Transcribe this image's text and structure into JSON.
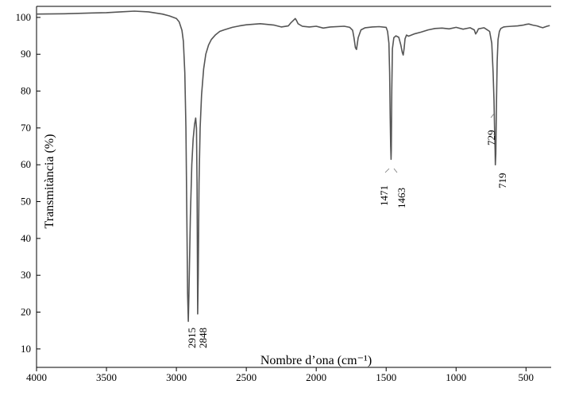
{
  "chart_data": {
    "type": "line",
    "title": "",
    "xlabel": "Nombre d’ona (cm⁻¹)",
    "ylabel": "Transmitància (%)",
    "xlim": [
      4000,
      320
    ],
    "ylim": [
      5,
      103
    ],
    "xticks": [
      4000,
      3500,
      3000,
      2500,
      2000,
      1500,
      1000,
      500
    ],
    "yticks": [
      10,
      20,
      30,
      40,
      50,
      60,
      70,
      80,
      90,
      100
    ],
    "grid": false,
    "line_color": "#555555",
    "series": [
      {
        "x": [
          4000,
          3800,
          3600,
          3500,
          3400,
          3300,
          3200,
          3100,
          3050,
          3000,
          2980,
          2960,
          2950,
          2940,
          2932,
          2925,
          2920,
          2915,
          2910,
          2900,
          2890,
          2880,
          2870,
          2862,
          2856,
          2852,
          2848,
          2844,
          2838,
          2830,
          2820,
          2805,
          2790,
          2770,
          2750,
          2720,
          2690,
          2660,
          2600,
          2550,
          2500,
          2400,
          2300,
          2250,
          2200,
          2180,
          2160,
          2150,
          2140,
          2130,
          2100,
          2050,
          2000,
          1950,
          1900,
          1800,
          1760,
          1740,
          1730,
          1720,
          1712,
          1700,
          1680,
          1650,
          1600,
          1550,
          1500,
          1490,
          1480,
          1475,
          1471,
          1468,
          1465,
          1463,
          1460,
          1455,
          1445,
          1430,
          1410,
          1395,
          1385,
          1378,
          1372,
          1365,
          1355,
          1340,
          1300,
          1250,
          1200,
          1150,
          1100,
          1050,
          1000,
          950,
          900,
          870,
          860,
          850,
          840,
          800,
          780,
          760,
          745,
          735,
          729,
          725,
          721,
          719,
          716,
          712,
          706,
          700,
          690,
          680,
          660,
          640,
          600,
          560,
          520,
          500,
          480,
          450,
          420,
          400,
          380,
          350,
          330
        ],
        "y": [
          100.9,
          101.0,
          101.2,
          101.3,
          101.5,
          101.7,
          101.5,
          100.9,
          100.4,
          99.7,
          98.8,
          96.5,
          93.5,
          85.0,
          70.0,
          45.0,
          25.0,
          17.5,
          25.0,
          46.0,
          60.0,
          67.0,
          71.0,
          72.7,
          70.0,
          55.0,
          19.5,
          30.0,
          55.0,
          70.0,
          79.0,
          86.0,
          90.0,
          92.5,
          94.0,
          95.3,
          96.2,
          96.6,
          97.3,
          97.7,
          98.0,
          98.3,
          97.9,
          97.4,
          97.7,
          98.6,
          99.3,
          99.7,
          99.1,
          98.3,
          97.6,
          97.4,
          97.6,
          97.1,
          97.4,
          97.6,
          97.3,
          96.5,
          94.5,
          91.8,
          91.3,
          94.5,
          96.6,
          97.2,
          97.4,
          97.5,
          97.3,
          96.2,
          93.0,
          85.0,
          73.0,
          65.0,
          61.5,
          64.0,
          80.0,
          91.5,
          94.5,
          95.0,
          94.6,
          92.5,
          90.5,
          89.8,
          91.5,
          94.2,
          95.2,
          94.9,
          95.5,
          96.0,
          96.6,
          97.0,
          97.1,
          96.9,
          97.3,
          96.8,
          97.2,
          96.6,
          95.5,
          96.1,
          96.9,
          97.2,
          96.7,
          96.2,
          93.0,
          85.0,
          77.5,
          70.0,
          64.0,
          60.0,
          63.0,
          75.0,
          88.0,
          94.0,
          96.2,
          97.0,
          97.4,
          97.5,
          97.6,
          97.7,
          97.9,
          98.1,
          98.2,
          97.9,
          97.7,
          97.4,
          97.2,
          97.6,
          97.8
        ]
      }
    ],
    "annotations": [
      "2915",
      "2848",
      "1471",
      "1463",
      "729",
      "719"
    ]
  }
}
